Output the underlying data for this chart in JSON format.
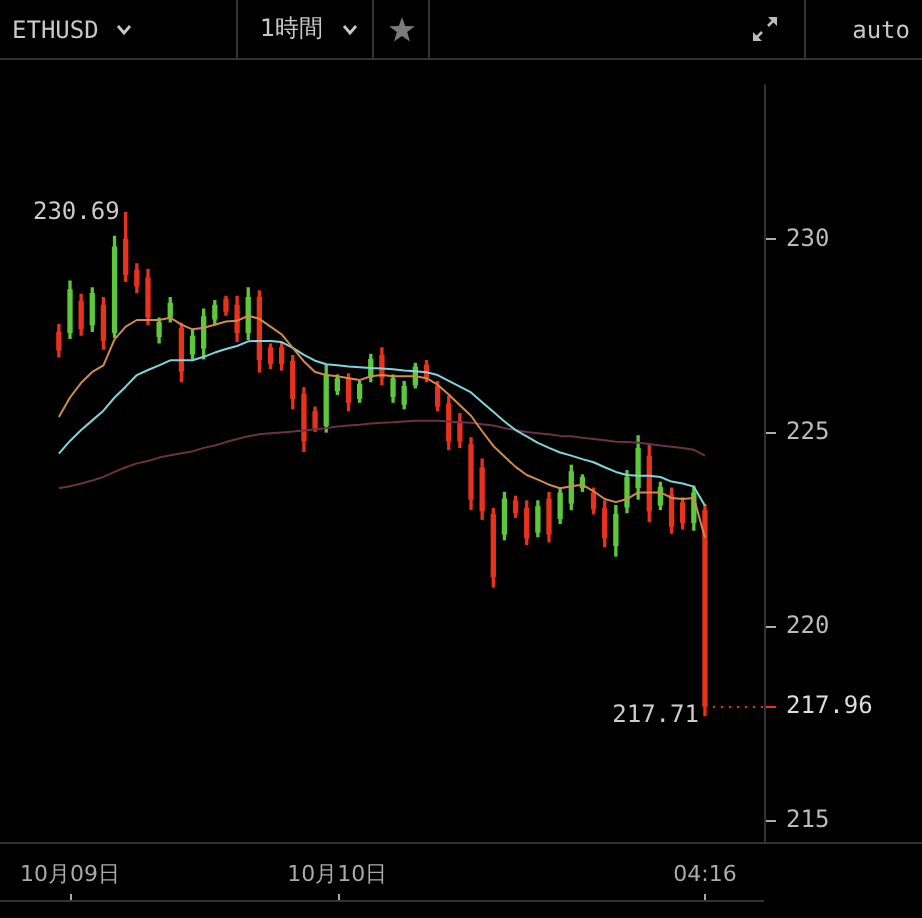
{
  "chart_data": {
    "type": "candlestick",
    "title": "ETHUSD",
    "subtitle": "1時間",
    "categories": [
      null,
      "10月09日",
      null,
      null,
      null,
      null,
      null,
      null,
      null,
      null,
      null,
      null,
      null,
      null,
      null,
      null,
      null,
      null,
      null,
      null,
      null,
      null,
      null,
      null,
      null,
      "10月10日",
      null,
      null,
      null,
      null,
      null,
      null,
      null,
      null,
      null,
      null,
      null,
      null,
      null,
      null,
      null,
      null,
      null,
      null,
      null,
      null,
      null,
      null,
      null,
      null,
      null,
      null,
      null,
      null,
      null,
      null,
      null,
      null,
      "04:16"
    ],
    "ohlc": [
      [
        227.6,
        227.8,
        226.97,
        227.15
      ],
      [
        227.6,
        228.92,
        227.45,
        228.7
      ],
      [
        228.4,
        228.58,
        227.53,
        227.7
      ],
      [
        227.8,
        228.75,
        227.63,
        228.6
      ],
      [
        228.3,
        228.5,
        227.17,
        227.4
      ],
      [
        227.6,
        230.08,
        227.47,
        229.8
      ],
      [
        230.0,
        230.69,
        228.92,
        229.1
      ],
      [
        229.2,
        229.37,
        228.63,
        228.8
      ],
      [
        229.0,
        229.22,
        227.8,
        228.0
      ],
      [
        227.5,
        227.97,
        227.33,
        227.85
      ],
      [
        228.0,
        228.5,
        227.87,
        228.35
      ],
      [
        227.7,
        227.83,
        226.33,
        226.6
      ],
      [
        227.05,
        227.67,
        226.92,
        227.5
      ],
      [
        227.2,
        228.2,
        226.92,
        228.0
      ],
      [
        227.95,
        228.42,
        227.8,
        228.3
      ],
      [
        228.45,
        228.53,
        228.05,
        228.15
      ],
      [
        228.3,
        228.53,
        227.37,
        227.6
      ],
      [
        227.6,
        228.75,
        227.42,
        228.5
      ],
      [
        228.5,
        228.67,
        226.58,
        226.9
      ],
      [
        227.2,
        227.3,
        226.67,
        226.8
      ],
      [
        227.2,
        227.33,
        226.63,
        226.8
      ],
      [
        226.85,
        227.0,
        225.63,
        225.9
      ],
      [
        226.0,
        226.17,
        224.53,
        224.8
      ],
      [
        225.55,
        225.67,
        225.05,
        225.15
      ],
      [
        225.2,
        226.75,
        225.03,
        226.5
      ],
      [
        226.1,
        226.5,
        226.0,
        226.4
      ],
      [
        226.4,
        226.53,
        225.58,
        225.8
      ],
      [
        225.9,
        226.33,
        225.8,
        226.25
      ],
      [
        226.45,
        227.03,
        226.33,
        226.9
      ],
      [
        227.0,
        227.2,
        226.25,
        226.45
      ],
      [
        225.95,
        226.5,
        225.8,
        226.4
      ],
      [
        225.75,
        226.33,
        225.63,
        226.2
      ],
      [
        226.25,
        226.8,
        226.17,
        226.7
      ],
      [
        226.75,
        226.87,
        226.33,
        226.45
      ],
      [
        226.2,
        226.33,
        225.58,
        225.7
      ],
      [
        225.75,
        225.95,
        224.58,
        224.8
      ],
      [
        225.3,
        225.5,
        224.63,
        224.8
      ],
      [
        224.7,
        224.88,
        223.03,
        223.3
      ],
      [
        224.1,
        224.33,
        222.78,
        223.0
      ],
      [
        222.9,
        223.05,
        221.03,
        221.3
      ],
      [
        222.4,
        223.47,
        222.25,
        223.3
      ],
      [
        223.25,
        223.37,
        222.83,
        222.95
      ],
      [
        223.05,
        223.25,
        222.13,
        222.3
      ],
      [
        222.45,
        223.25,
        222.33,
        223.1
      ],
      [
        223.3,
        223.47,
        222.2,
        222.4
      ],
      [
        222.8,
        223.58,
        222.67,
        223.45
      ],
      [
        223.2,
        224.17,
        223.03,
        224.0
      ],
      [
        223.6,
        223.92,
        223.5,
        223.85
      ],
      [
        223.45,
        223.58,
        222.92,
        223.05
      ],
      [
        223.05,
        223.25,
        222.07,
        222.3
      ],
      [
        222.1,
        223.13,
        221.83,
        222.9
      ],
      [
        223.1,
        224.03,
        222.95,
        223.85
      ],
      [
        223.6,
        224.93,
        223.3,
        224.6
      ],
      [
        224.4,
        224.7,
        222.72,
        223.0
      ],
      [
        223.15,
        223.73,
        223.03,
        223.6
      ],
      [
        223.4,
        223.58,
        222.42,
        222.6
      ],
      [
        223.2,
        223.33,
        222.53,
        222.7
      ],
      [
        222.7,
        223.63,
        222.5,
        223.45
      ],
      [
        223.0,
        223.15,
        217.71,
        217.96
      ]
    ],
    "colors": [
      "#e8321e",
      "#5cc83c",
      "#e8321e",
      "#5cc83c",
      "#e8321e",
      "#5cc83c",
      "#e8321e",
      "#e8321e",
      "#e8321e",
      "#5cc83c",
      "#5cc83c",
      "#e8321e",
      "#5cc83c",
      "#5cc83c",
      "#5cc83c",
      "#e8321e",
      "#e8321e",
      "#5cc83c",
      "#e8321e",
      "#e8321e",
      "#e8321e",
      "#e8321e",
      "#e8321e",
      "#e8321e",
      "#5cc83c",
      "#5cc83c",
      "#e8321e",
      "#5cc83c",
      "#5cc83c",
      "#e8321e",
      "#5cc83c",
      "#5cc83c",
      "#5cc83c",
      "#e8321e",
      "#e8321e",
      "#e8321e",
      "#e8321e",
      "#e8321e",
      "#e8321e",
      "#e8321e",
      "#5cc83c",
      "#e8321e",
      "#e8321e",
      "#5cc83c",
      "#e8321e",
      "#5cc83c",
      "#5cc83c",
      "#5cc83c",
      "#e8321e",
      "#e8321e",
      "#5cc83c",
      "#5cc83c",
      "#5cc83c",
      "#e8321e",
      "#5cc83c",
      "#e8321e",
      "#e8321e",
      "#5cc83c",
      "#e8321e"
    ],
    "series": [
      {
        "type": "line",
        "color": "#d08c4e",
        "values": [
          225.42,
          225.92,
          226.3,
          226.58,
          226.75,
          227.42,
          227.75,
          227.92,
          227.92,
          227.92,
          227.98,
          227.8,
          227.68,
          227.72,
          227.8,
          227.88,
          227.9,
          228.03,
          227.95,
          227.75,
          227.55,
          227.2,
          226.85,
          226.58,
          226.5,
          226.47,
          226.42,
          226.37,
          226.47,
          226.5,
          226.47,
          226.47,
          226.47,
          226.42,
          226.25,
          226.0,
          225.72,
          225.45,
          225.05,
          224.67,
          224.4,
          224.13,
          223.92,
          223.8,
          223.67,
          223.58,
          223.63,
          223.67,
          223.5,
          223.3,
          223.22,
          223.3,
          223.47,
          223.47,
          223.47,
          223.33,
          223.3,
          223.33,
          222.3
        ]
      },
      {
        "type": "line",
        "color": "#80d4dc",
        "values": [
          224.47,
          224.8,
          225.08,
          225.33,
          225.58,
          225.92,
          226.2,
          226.5,
          226.63,
          226.75,
          226.88,
          226.88,
          226.88,
          226.97,
          227.08,
          227.17,
          227.25,
          227.37,
          227.38,
          227.38,
          227.35,
          227.2,
          227.02,
          226.87,
          226.78,
          226.75,
          226.72,
          226.7,
          226.68,
          226.67,
          226.65,
          226.62,
          226.6,
          226.57,
          226.5,
          226.35,
          226.2,
          226.05,
          225.8,
          225.55,
          225.3,
          225.08,
          224.92,
          224.75,
          224.62,
          224.5,
          224.42,
          224.33,
          224.25,
          224.12,
          224.0,
          223.92,
          223.9,
          223.9,
          223.87,
          223.75,
          223.7,
          223.62,
          223.13
        ]
      },
      {
        "type": "line",
        "color": "#6e2f4a",
        "values": [
          223.58,
          223.63,
          223.7,
          223.78,
          223.87,
          224.0,
          224.12,
          224.22,
          224.28,
          224.37,
          224.43,
          224.48,
          224.53,
          224.62,
          224.68,
          224.77,
          224.85,
          224.92,
          224.97,
          225.0,
          225.02,
          225.04,
          225.07,
          225.1,
          225.13,
          225.17,
          225.2,
          225.22,
          225.25,
          225.27,
          225.28,
          225.3,
          225.32,
          225.32,
          225.32,
          225.3,
          225.28,
          225.27,
          225.23,
          225.2,
          225.13,
          225.08,
          225.03,
          225.0,
          224.97,
          224.93,
          224.92,
          224.88,
          224.85,
          224.82,
          224.78,
          224.77,
          224.75,
          224.72,
          224.68,
          224.65,
          224.62,
          224.57,
          224.42
        ]
      }
    ],
    "ylim": [
      214.45,
      234
    ],
    "yticks": [
      215,
      220,
      225,
      230
    ],
    "ref_lines": [
      {
        "axis": "y",
        "value": 217.96,
        "label": "217.96",
        "color": "#e8321e",
        "line_style": "dotted"
      }
    ],
    "annotations": [
      "230.69",
      "217.71",
      "auto"
    ]
  }
}
